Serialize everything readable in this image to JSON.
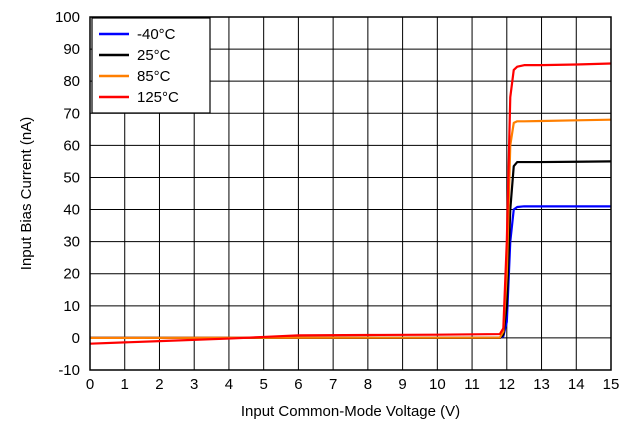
{
  "chart_data": {
    "type": "line",
    "title": "",
    "xlabel": "Input Common-Mode Voltage (V)",
    "ylabel": "Input Bias Current (nA)",
    "xlim": [
      0,
      15
    ],
    "ylim": [
      -10,
      100
    ],
    "xticks": [
      0,
      1,
      2,
      3,
      4,
      5,
      6,
      7,
      8,
      9,
      10,
      11,
      12,
      13,
      14,
      15
    ],
    "yticks": [
      -10,
      0,
      10,
      20,
      30,
      40,
      50,
      60,
      70,
      80,
      90,
      100
    ],
    "grid": true,
    "legend": {
      "placement": "top-left"
    },
    "series": [
      {
        "name": "-40°C",
        "color": "#0000ff",
        "points": [
          [
            0,
            0
          ],
          [
            11.8,
            0
          ],
          [
            11.9,
            0.5
          ],
          [
            12.0,
            5
          ],
          [
            12.1,
            30
          ],
          [
            12.2,
            40
          ],
          [
            12.3,
            40.8
          ],
          [
            12.5,
            41.0
          ],
          [
            13,
            41.0
          ],
          [
            14,
            41.0
          ],
          [
            15,
            41.0
          ]
        ]
      },
      {
        "name": "25°C",
        "color": "#000000",
        "points": [
          [
            0,
            0
          ],
          [
            11.8,
            0
          ],
          [
            11.9,
            1
          ],
          [
            12.0,
            10
          ],
          [
            12.1,
            40
          ],
          [
            12.2,
            53.5
          ],
          [
            12.3,
            54.8
          ],
          [
            12.5,
            54.8
          ],
          [
            13,
            54.8
          ],
          [
            14,
            54.9
          ],
          [
            15,
            55.0
          ]
        ]
      },
      {
        "name": "85°C",
        "color": "#ff7f00",
        "points": [
          [
            0,
            0
          ],
          [
            11.8,
            0.1
          ],
          [
            11.9,
            2
          ],
          [
            12.0,
            20
          ],
          [
            12.1,
            60
          ],
          [
            12.2,
            67
          ],
          [
            12.3,
            67.5
          ],
          [
            12.5,
            67.5
          ],
          [
            13,
            67.6
          ],
          [
            14,
            67.8
          ],
          [
            15,
            68.0
          ]
        ]
      },
      {
        "name": "125°C",
        "color": "#ff0000",
        "points": [
          [
            0,
            -1.8
          ],
          [
            2,
            -1.0
          ],
          [
            4,
            -0.2
          ],
          [
            5,
            0.3
          ],
          [
            6,
            0.8
          ],
          [
            8,
            0.9
          ],
          [
            10,
            1.0
          ],
          [
            11.8,
            1.2
          ],
          [
            11.9,
            3
          ],
          [
            12.0,
            30
          ],
          [
            12.1,
            75
          ],
          [
            12.2,
            83.5
          ],
          [
            12.3,
            84.5
          ],
          [
            12.5,
            85.0
          ],
          [
            13,
            85.0
          ],
          [
            14,
            85.2
          ],
          [
            15,
            85.5
          ]
        ]
      }
    ]
  }
}
